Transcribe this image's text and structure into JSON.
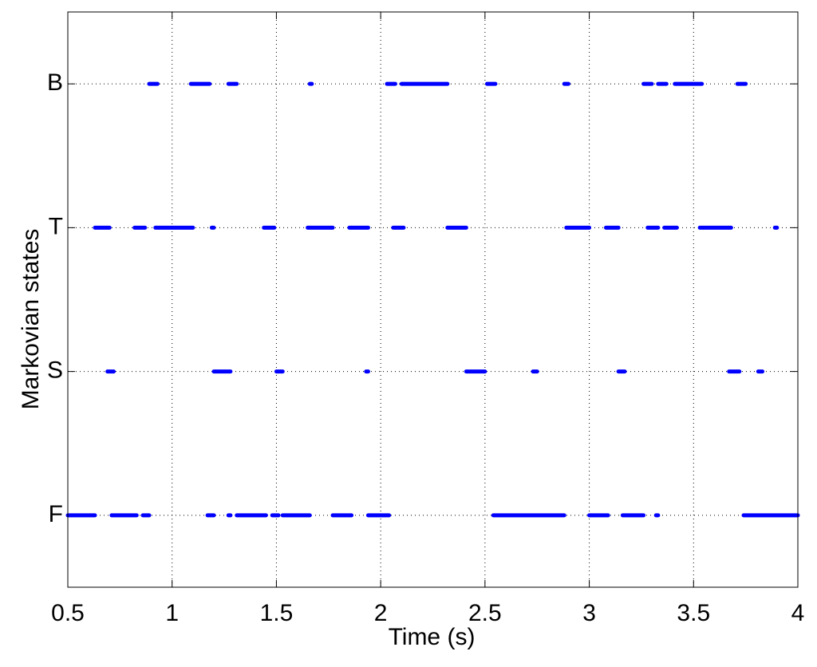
{
  "chart_data": {
    "type": "timeline",
    "x_label": "Time (s)",
    "y_label": "Markovian states",
    "xlim": [
      0.5,
      4
    ],
    "xticks": [
      0.5,
      1,
      1.5,
      2,
      2.5,
      3,
      3.5,
      4
    ],
    "categories": [
      "F",
      "S",
      "T",
      "B"
    ],
    "color": "#0000ff",
    "grid": true,
    "intervals": [
      [
        [
          0.5,
          0.63
        ],
        [
          0.71,
          0.83
        ],
        [
          0.86,
          0.89
        ],
        [
          1.17,
          1.2
        ],
        [
          1.27,
          1.28
        ],
        [
          1.31,
          1.45
        ],
        [
          1.48,
          1.51
        ],
        [
          1.53,
          1.66
        ],
        [
          1.77,
          1.86
        ],
        [
          1.94,
          2.04
        ],
        [
          2.54,
          2.88
        ],
        [
          3.0,
          3.09
        ],
        [
          3.16,
          3.26
        ],
        [
          3.32,
          3.33
        ],
        [
          3.74,
          4.0
        ]
      ],
      [
        [
          0.69,
          0.72
        ],
        [
          1.2,
          1.28
        ],
        [
          1.5,
          1.53
        ],
        [
          1.93,
          1.94
        ],
        [
          2.41,
          2.5
        ],
        [
          2.73,
          2.75
        ],
        [
          3.14,
          3.17
        ],
        [
          3.67,
          3.72
        ],
        [
          3.81,
          3.83
        ]
      ],
      [
        [
          0.63,
          0.7
        ],
        [
          0.82,
          0.87
        ],
        [
          0.92,
          1.1
        ],
        [
          1.19,
          1.2
        ],
        [
          1.44,
          1.49
        ],
        [
          1.65,
          1.77
        ],
        [
          1.85,
          1.94
        ],
        [
          2.06,
          2.11
        ],
        [
          2.32,
          2.41
        ],
        [
          2.89,
          3.0
        ],
        [
          3.08,
          3.14
        ],
        [
          3.28,
          3.33
        ],
        [
          3.36,
          3.42
        ],
        [
          3.53,
          3.68
        ],
        [
          3.89,
          3.9
        ]
      ],
      [
        [
          0.89,
          0.93
        ],
        [
          1.09,
          1.18
        ],
        [
          1.27,
          1.31
        ],
        [
          1.66,
          1.67
        ],
        [
          2.03,
          2.07
        ],
        [
          2.1,
          2.32
        ],
        [
          2.51,
          2.55
        ],
        [
          2.88,
          2.9
        ],
        [
          3.26,
          3.3
        ],
        [
          3.33,
          3.37
        ],
        [
          3.41,
          3.54
        ],
        [
          3.71,
          3.75
        ]
      ]
    ]
  }
}
